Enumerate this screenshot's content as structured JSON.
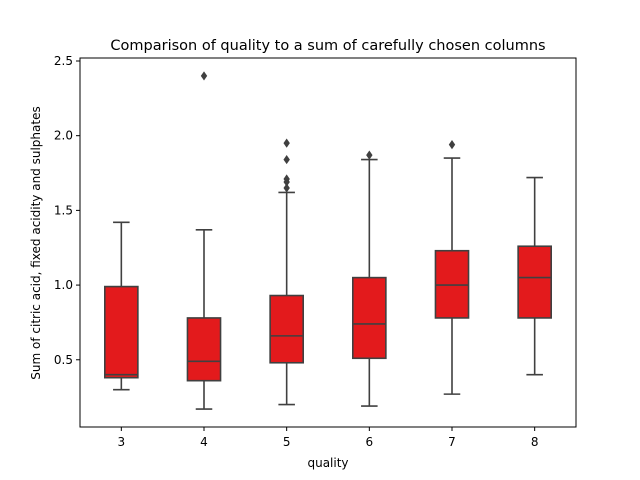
{
  "chart_data": {
    "type": "box",
    "title": "Comparison of quality to a sum of carefully chosen columns",
    "xlabel": "quality",
    "ylabel": "Sum of citric acid, fixed acidity and sulphates",
    "ylim": [
      0.05,
      2.52
    ],
    "yticks": [
      0.5,
      1.0,
      1.5,
      2.0,
      2.5
    ],
    "ytick_labels": [
      "0.5",
      "1.0",
      "1.5",
      "2.0",
      "2.5"
    ],
    "grid": false,
    "box_color": "#e31a1c",
    "line_color": "#404040",
    "categories": [
      "3",
      "4",
      "5",
      "6",
      "7",
      "8"
    ],
    "boxes": [
      {
        "label": "3",
        "whislo": 0.3,
        "q1": 0.38,
        "median": 0.4,
        "q3": 0.99,
        "whishi": 1.42,
        "fliers": []
      },
      {
        "label": "4",
        "whislo": 0.17,
        "q1": 0.36,
        "median": 0.49,
        "q3": 0.78,
        "whishi": 1.37,
        "fliers": [
          2.4
        ]
      },
      {
        "label": "5",
        "whislo": 0.2,
        "q1": 0.48,
        "median": 0.66,
        "q3": 0.93,
        "whishi": 1.62,
        "fliers": [
          1.65,
          1.69,
          1.71,
          1.84,
          1.95
        ]
      },
      {
        "label": "6",
        "whislo": 0.19,
        "q1": 0.51,
        "median": 0.74,
        "q3": 1.05,
        "whishi": 1.84,
        "fliers": [
          1.87
        ]
      },
      {
        "label": "7",
        "whislo": 0.27,
        "q1": 0.78,
        "median": 1.0,
        "q3": 1.23,
        "whishi": 1.85,
        "fliers": [
          1.94
        ]
      },
      {
        "label": "8",
        "whislo": 0.4,
        "q1": 0.78,
        "median": 1.05,
        "q3": 1.26,
        "whishi": 1.72,
        "fliers": []
      }
    ]
  }
}
